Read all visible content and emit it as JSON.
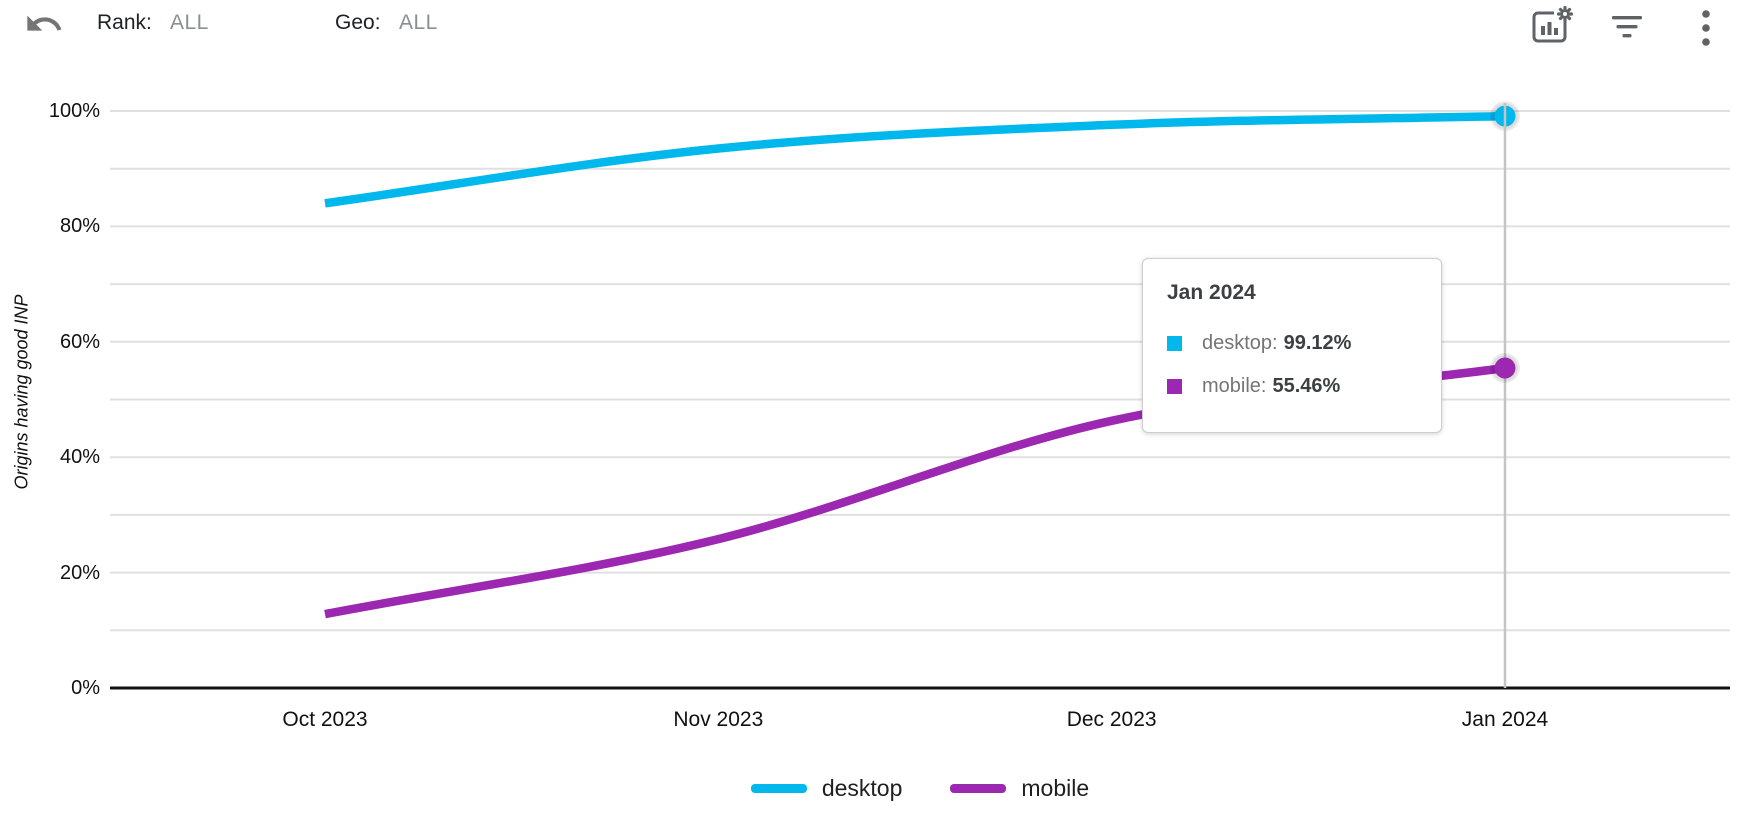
{
  "toolbar": {
    "rank_label": "Rank:",
    "rank_value": "ALL",
    "geo_label": "Geo:",
    "geo_value": "ALL",
    "icons": [
      "undo-icon",
      "chart-settings-icon",
      "filter-icon",
      "more-vert-icon"
    ]
  },
  "chart_data": {
    "type": "line",
    "title": "",
    "xlabel": "",
    "ylabel": "Origins having good INP",
    "x_categories": [
      "Oct 2023",
      "Nov 2023",
      "Dec 2023",
      "Jan 2024"
    ],
    "y_ticks": [
      "100%",
      "80%",
      "60%",
      "40%",
      "20%",
      "0%"
    ],
    "ylim": [
      0,
      100
    ],
    "grid": true,
    "gridline_step_percent": 10,
    "legend_position": "bottom",
    "smoothing": true,
    "series": [
      {
        "name": "desktop",
        "color": "#00B8EC",
        "values": [
          84.0,
          93.5,
          97.6,
          99.12
        ]
      },
      {
        "name": "mobile",
        "color": "#9C27B0",
        "values": [
          12.8,
          25.8,
          46.3,
          55.46
        ]
      }
    ],
    "highlighted_x": "Jan 2024"
  },
  "tooltip": {
    "title": "Jan 2024",
    "rows": [
      {
        "label": "desktop",
        "value": "99.12%",
        "color": "#00B8EC"
      },
      {
        "label": "mobile",
        "value": "55.46%",
        "color": "#9C27B0"
      }
    ]
  },
  "colors": {
    "gridline": "#e0e0e0",
    "axis_line": "#111111",
    "crosshair": "#c4c4c4",
    "toolbar_icon": "#5f6368",
    "undo_icon": "#757575",
    "muted_text": "#8a8f94",
    "tooltip_text": "#757575",
    "tooltip_strong": "#3c4043"
  }
}
